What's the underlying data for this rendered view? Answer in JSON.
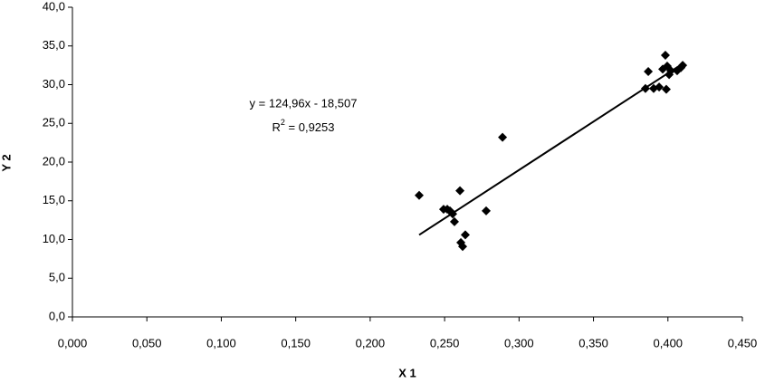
{
  "chart_data": {
    "type": "scatter",
    "x_label": "X 1",
    "y_label": "Y 2",
    "x": [
      0.2329,
      0.2493,
      0.2518,
      0.2536,
      0.2554,
      0.2566,
      0.2603,
      0.2609,
      0.2621,
      0.2639,
      0.2779,
      0.2889,
      0.3849,
      0.3868,
      0.3904,
      0.3941,
      0.3965,
      0.3983,
      0.3989,
      0.3995,
      0.4008,
      0.402,
      0.4062,
      0.4087,
      0.4099
    ],
    "y": [
      15.7,
      13.9,
      13.9,
      13.7,
      13.3,
      12.3,
      16.3,
      9.6,
      9.1,
      10.6,
      13.7,
      23.2,
      29.5,
      31.7,
      29.5,
      29.7,
      32.0,
      33.8,
      29.4,
      32.4,
      31.3,
      31.8,
      31.8,
      32.2,
      32.5
    ],
    "color": "#000000",
    "xlim": [
      0,
      0.45
    ],
    "ylim": [
      0,
      40
    ],
    "xticks": [
      {
        "value": 0,
        "label": "0,000"
      },
      {
        "value": 0.05,
        "label": "0,050"
      },
      {
        "value": 0.1,
        "label": "0,100"
      },
      {
        "value": 0.15,
        "label": "0,150"
      },
      {
        "value": 0.2,
        "label": "0,200"
      },
      {
        "value": 0.25,
        "label": "0,250"
      },
      {
        "value": 0.3,
        "label": "0,300"
      },
      {
        "value": 0.35,
        "label": "0,350"
      },
      {
        "value": 0.4,
        "label": "0,400"
      },
      {
        "value": 0.45,
        "label": "0,450"
      }
    ],
    "yticks": [
      {
        "value": 0,
        "label": "0,0"
      },
      {
        "value": 5,
        "label": "5,0"
      },
      {
        "value": 10,
        "label": "10,0"
      },
      {
        "value": 15,
        "label": "15,0"
      },
      {
        "value": 20,
        "label": "20,0"
      },
      {
        "value": 25,
        "label": "25,0"
      },
      {
        "value": 30,
        "label": "30,0"
      },
      {
        "value": 35,
        "label": "35,0"
      },
      {
        "value": 40,
        "label": "40,0"
      }
    ],
    "grid": false,
    "trendline": {
      "slope": 124.96,
      "intercept": -18.507,
      "equation": "y = 124,96x - 18,507",
      "r2": 0.9253,
      "r2_label": [
        "R",
        "2",
        " = 0,9253"
      ]
    }
  }
}
